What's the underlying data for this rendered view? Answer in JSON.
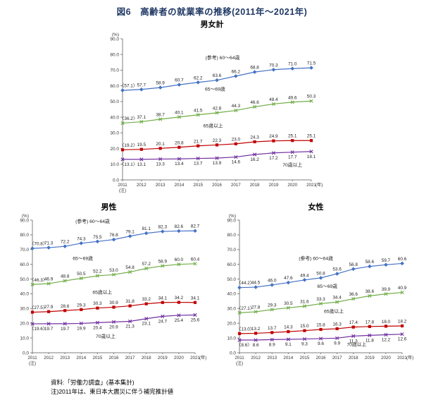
{
  "title": "図6　高齢者の就業率の推移(2011年〜2021年)",
  "axis": {
    "y_unit": "(%)",
    "x_unit": "(年)",
    "x_note": "(注)",
    "ystep": 10
  },
  "chart_data": [
    {
      "type": "line",
      "title": "男女計",
      "ylabel": "(%)",
      "xlabel": "(年)",
      "ylim": [
        0,
        90
      ],
      "bracket_first": true,
      "categories": [
        2011,
        2012,
        2013,
        2014,
        2015,
        2016,
        2017,
        2018,
        2019,
        2020,
        2021
      ],
      "series": [
        {
          "name": "(参考) 60〜64歳",
          "color": "#4472c4",
          "marker": "diamond",
          "label_side": "above",
          "values": [
            57.1,
            57.7,
            58.9,
            60.7,
            62.2,
            63.6,
            66.2,
            68.8,
            70.3,
            71.0,
            71.5
          ]
        },
        {
          "name": "65〜69歳",
          "color": "#70ad47",
          "marker": "x",
          "label_side": "above",
          "values": [
            36.2,
            37.1,
            38.7,
            40.1,
            41.5,
            42.8,
            44.3,
            46.6,
            48.4,
            49.6,
            50.3
          ]
        },
        {
          "name": "65歳以上",
          "color": "#c00000",
          "marker": "square",
          "label_side": "above",
          "values": [
            19.2,
            19.5,
            20.1,
            20.8,
            21.7,
            22.3,
            23.0,
            24.3,
            24.9,
            25.1,
            25.1
          ]
        },
        {
          "name": "70歳以上",
          "color": "#7030a0",
          "marker": "x",
          "label_side": "below",
          "values": [
            13.1,
            13.1,
            13.3,
            13.4,
            13.7,
            13.9,
            14.6,
            16.2,
            17.2,
            17.7,
            18.1
          ]
        }
      ]
    },
    {
      "type": "line",
      "title": "男性",
      "ylabel": "(%)",
      "xlabel": "(年)",
      "ylim": [
        0,
        90
      ],
      "bracket_first": true,
      "categories": [
        2011,
        2012,
        2013,
        2014,
        2015,
        2016,
        2017,
        2018,
        2019,
        2020,
        2021
      ],
      "series": [
        {
          "name": "(参考) 60〜64歳",
          "color": "#4472c4",
          "marker": "diamond",
          "label_side": "above",
          "values": [
            70.8,
            71.3,
            72.2,
            74.3,
            75.5,
            76.8,
            79.1,
            81.1,
            82.3,
            82.6,
            82.7
          ]
        },
        {
          "name": "65〜69歳",
          "color": "#70ad47",
          "marker": "x",
          "label_side": "above",
          "values": [
            46.3,
            46.9,
            48.8,
            50.5,
            52.2,
            53.0,
            54.8,
            57.2,
            58.9,
            60.0,
            60.4
          ]
        },
        {
          "name": "65歳以上",
          "color": "#c00000",
          "marker": "square",
          "label_side": "above",
          "values": [
            27.5,
            27.9,
            28.6,
            29.3,
            30.3,
            30.9,
            31.8,
            33.2,
            34.1,
            34.2,
            34.1
          ]
        },
        {
          "name": "70歳以上",
          "color": "#7030a0",
          "marker": "x",
          "label_side": "below",
          "values": [
            19.6,
            19.7,
            19.7,
            19.9,
            20.4,
            20.9,
            21.3,
            23.1,
            24.7,
            25.4,
            25.6
          ]
        }
      ]
    },
    {
      "type": "line",
      "title": "女性",
      "ylabel": "(%)",
      "xlabel": "(年)",
      "ylim": [
        0,
        90
      ],
      "bracket_first": true,
      "categories": [
        2011,
        2012,
        2013,
        2014,
        2015,
        2016,
        2017,
        2018,
        2019,
        2020,
        2021
      ],
      "series": [
        {
          "name": "(参考) 60〜64歳",
          "color": "#4472c4",
          "marker": "diamond",
          "label_side": "above",
          "values": [
            44.2,
            44.5,
            46.0,
            47.6,
            49.4,
            50.8,
            53.6,
            56.8,
            58.6,
            59.7,
            60.6
          ]
        },
        {
          "name": "65〜69歳",
          "color": "#70ad47",
          "marker": "x",
          "label_side": "above",
          "values": [
            27.1,
            27.8,
            29.3,
            30.5,
            31.6,
            33.3,
            34.4,
            36.6,
            38.6,
            39.9,
            40.9
          ]
        },
        {
          "name": "65歳以上",
          "color": "#c00000",
          "marker": "square",
          "label_side": "above",
          "values": [
            13.0,
            13.2,
            13.7,
            14.3,
            15.0,
            15.8,
            16.3,
            17.4,
            17.8,
            18.0,
            18.2
          ]
        },
        {
          "name": "70歳以上",
          "color": "#7030a0",
          "marker": "x",
          "label_side": "below",
          "values": [
            8.6,
            8.6,
            8.9,
            9.1,
            9.3,
            9.6,
            9.9,
            11.3,
            11.8,
            12.2,
            12.6
          ]
        }
      ]
    }
  ],
  "footer": {
    "source": "資料:「労働力調査」(基本集計)",
    "note": "注)2011年は、東日本大震災に伴う補完推計値"
  }
}
